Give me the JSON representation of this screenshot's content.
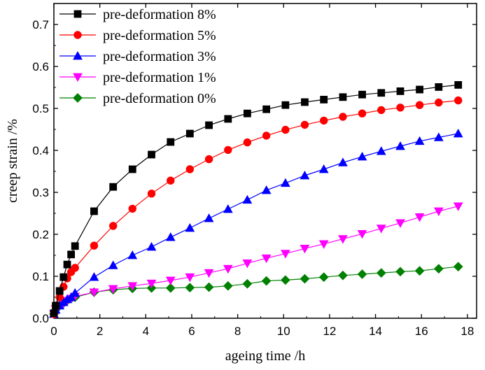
{
  "chart_data": {
    "type": "line",
    "title": "",
    "xlabel": "ageing time /h",
    "ylabel": "creep strain /%",
    "xlim": [
      0,
      18.4
    ],
    "ylim": [
      0,
      0.75
    ],
    "xticks": [
      0,
      2,
      4,
      6,
      8,
      10,
      12,
      14,
      16,
      18
    ],
    "yticks": [
      0.0,
      0.1,
      0.2,
      0.3,
      0.4,
      0.5,
      0.6,
      0.7
    ],
    "grid": false,
    "legend_position": "top-left",
    "series": [
      {
        "name": "pre-deformation 8%",
        "color": "#000000",
        "marker": "square",
        "x": [
          0,
          0.08,
          0.25,
          0.42,
          0.58,
          0.75,
          0.92,
          1.75,
          2.58,
          3.42,
          4.25,
          5.08,
          5.92,
          6.75,
          7.58,
          8.42,
          9.25,
          10.08,
          10.92,
          11.75,
          12.58,
          13.42,
          14.25,
          15.08,
          15.92,
          16.75,
          17.6
        ],
        "y": [
          0.012,
          0.03,
          0.065,
          0.098,
          0.128,
          0.152,
          0.172,
          0.255,
          0.313,
          0.355,
          0.39,
          0.42,
          0.44,
          0.46,
          0.475,
          0.488,
          0.498,
          0.508,
          0.515,
          0.521,
          0.527,
          0.533,
          0.537,
          0.541,
          0.545,
          0.551,
          0.556
        ]
      },
      {
        "name": "pre-deformation 5%",
        "color": "#ff0000",
        "marker": "circle",
        "x": [
          0,
          0.08,
          0.25,
          0.42,
          0.58,
          0.75,
          0.92,
          1.75,
          2.58,
          3.42,
          4.25,
          5.08,
          5.92,
          6.75,
          7.58,
          8.42,
          9.25,
          10.08,
          10.92,
          11.75,
          12.58,
          13.42,
          14.25,
          15.08,
          15.92,
          16.75,
          17.6
        ],
        "y": [
          0.01,
          0.03,
          0.05,
          0.075,
          0.095,
          0.11,
          0.12,
          0.173,
          0.22,
          0.261,
          0.297,
          0.328,
          0.355,
          0.379,
          0.401,
          0.419,
          0.435,
          0.449,
          0.461,
          0.471,
          0.48,
          0.488,
          0.496,
          0.502,
          0.508,
          0.514,
          0.519
        ]
      },
      {
        "name": "pre-deformation 3%",
        "color": "#0000ff",
        "marker": "triangle-up",
        "x": [
          0,
          0.08,
          0.25,
          0.42,
          0.58,
          0.75,
          0.92,
          1.75,
          2.58,
          3.42,
          4.25,
          5.08,
          5.92,
          6.75,
          7.58,
          8.42,
          9.25,
          10.08,
          10.92,
          11.75,
          12.58,
          13.42,
          14.25,
          15.08,
          15.92,
          16.75,
          17.6
        ],
        "y": [
          0.01,
          0.02,
          0.03,
          0.038,
          0.045,
          0.05,
          0.06,
          0.098,
          0.126,
          0.15,
          0.17,
          0.193,
          0.215,
          0.238,
          0.26,
          0.282,
          0.305,
          0.322,
          0.34,
          0.355,
          0.371,
          0.385,
          0.398,
          0.41,
          0.422,
          0.431,
          0.44
        ]
      },
      {
        "name": "pre-deformation 1%",
        "color": "#ff00ff",
        "marker": "triangle-down",
        "x": [
          0,
          0.08,
          0.25,
          0.42,
          0.58,
          0.75,
          0.92,
          1.75,
          2.58,
          3.42,
          4.25,
          5.08,
          5.92,
          6.75,
          7.58,
          8.42,
          9.25,
          10.08,
          10.92,
          11.75,
          12.58,
          13.42,
          14.25,
          15.08,
          15.92,
          16.75,
          17.6
        ],
        "y": [
          0.01,
          0.022,
          0.03,
          0.036,
          0.042,
          0.047,
          0.052,
          0.062,
          0.07,
          0.077,
          0.083,
          0.09,
          0.098,
          0.108,
          0.118,
          0.131,
          0.143,
          0.154,
          0.166,
          0.177,
          0.189,
          0.201,
          0.214,
          0.227,
          0.241,
          0.255,
          0.267
        ]
      },
      {
        "name": "pre-deformation 0%",
        "color": "#008000",
        "marker": "diamond",
        "x": [
          0,
          0.08,
          0.25,
          0.42,
          0.58,
          0.75,
          0.92,
          1.75,
          2.58,
          3.42,
          4.25,
          5.08,
          5.92,
          6.75,
          7.58,
          8.42,
          9.25,
          10.08,
          10.92,
          11.75,
          12.58,
          13.42,
          14.25,
          15.08,
          15.92,
          16.75,
          17.6
        ],
        "y": [
          0.01,
          0.02,
          0.03,
          0.036,
          0.042,
          0.047,
          0.05,
          0.062,
          0.068,
          0.071,
          0.072,
          0.072,
          0.073,
          0.074,
          0.077,
          0.082,
          0.089,
          0.091,
          0.094,
          0.098,
          0.102,
          0.105,
          0.108,
          0.111,
          0.113,
          0.118,
          0.123
        ]
      }
    ]
  }
}
